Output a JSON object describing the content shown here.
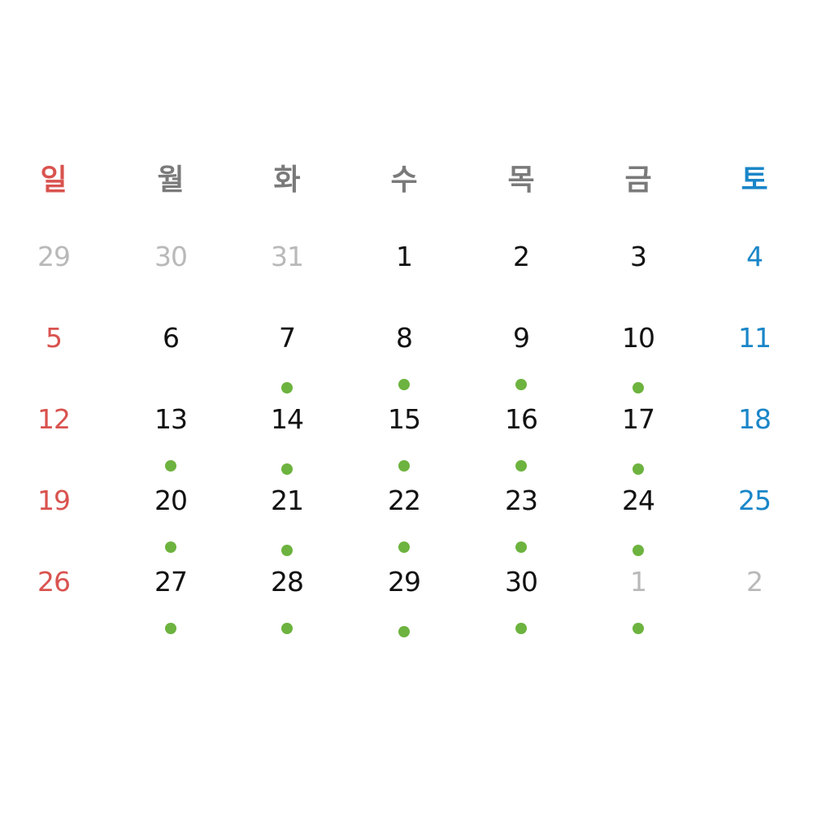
{
  "weekdays": [
    "일",
    "월",
    "화",
    "수",
    "목",
    "금",
    "토"
  ],
  "colors": {
    "sunday": "#d9534f",
    "saturday": "#1a86c8",
    "weekday_header": "#7a7a7a",
    "day_text": "#111111",
    "other_month": "#b9b9b9",
    "event_dot": "#6db33f"
  },
  "weeks": [
    [
      {
        "day": "29",
        "other": true,
        "event": false
      },
      {
        "day": "30",
        "other": true,
        "event": false
      },
      {
        "day": "31",
        "other": true,
        "event": false
      },
      {
        "day": "1",
        "other": false,
        "event": false
      },
      {
        "day": "2",
        "other": false,
        "event": false
      },
      {
        "day": "3",
        "other": false,
        "event": false
      },
      {
        "day": "4",
        "other": false,
        "event": false
      }
    ],
    [
      {
        "day": "5",
        "other": false,
        "event": false
      },
      {
        "day": "6",
        "other": false,
        "event": false
      },
      {
        "day": "7",
        "other": false,
        "event": true
      },
      {
        "day": "8",
        "other": false,
        "event": true
      },
      {
        "day": "9",
        "other": false,
        "event": true
      },
      {
        "day": "10",
        "other": false,
        "event": true
      },
      {
        "day": "11",
        "other": false,
        "event": false
      }
    ],
    [
      {
        "day": "12",
        "other": false,
        "event": false
      },
      {
        "day": "13",
        "other": false,
        "event": true
      },
      {
        "day": "14",
        "other": false,
        "event": true
      },
      {
        "day": "15",
        "other": false,
        "event": true
      },
      {
        "day": "16",
        "other": false,
        "event": true
      },
      {
        "day": "17",
        "other": false,
        "event": true
      },
      {
        "day": "18",
        "other": false,
        "event": false
      }
    ],
    [
      {
        "day": "19",
        "other": false,
        "event": false
      },
      {
        "day": "20",
        "other": false,
        "event": true
      },
      {
        "day": "21",
        "other": false,
        "event": true
      },
      {
        "day": "22",
        "other": false,
        "event": true
      },
      {
        "day": "23",
        "other": false,
        "event": true
      },
      {
        "day": "24",
        "other": false,
        "event": true
      },
      {
        "day": "25",
        "other": false,
        "event": false
      }
    ],
    [
      {
        "day": "26",
        "other": false,
        "event": false
      },
      {
        "day": "27",
        "other": false,
        "event": true
      },
      {
        "day": "28",
        "other": false,
        "event": true
      },
      {
        "day": "29",
        "other": false,
        "event": true
      },
      {
        "day": "30",
        "other": false,
        "event": true
      },
      {
        "day": "1",
        "other": true,
        "event": true
      },
      {
        "day": "2",
        "other": true,
        "event": false
      }
    ]
  ]
}
